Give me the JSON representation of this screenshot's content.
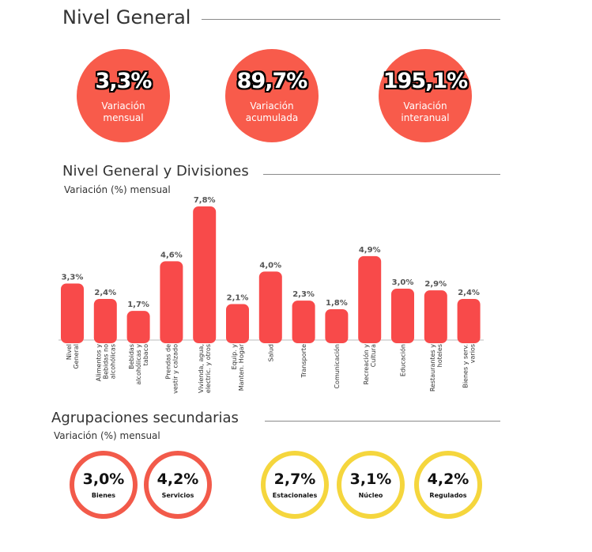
{
  "header": {
    "title": "Nivel General"
  },
  "kpis": [
    {
      "value": "3,3%",
      "label": "Variación\nmensual"
    },
    {
      "value": "89,7%",
      "label": "Variación\nacumulada"
    },
    {
      "value": "195,1%",
      "label": "Variación\ninteranual"
    }
  ],
  "divisions": {
    "title": "Nivel General y Divisiones",
    "subtitle": "Variación (%) mensual"
  },
  "chart_data": {
    "type": "bar",
    "categories": [
      "Nivel\nGeneral",
      "Alimentos y\nBebidas no\nalcohólicas",
      "Bebidas\nalcohólicas y\ntabaco",
      "Prendas de\nvestir y calzado",
      "Vivienda, agua,\nelectric. y otros",
      "Equip. y\nManten. Hogar",
      "Salud",
      "Transporte",
      "Comunicación",
      "Recreación y\nCultura",
      "Educación",
      "Restaurantes y\nhoteles",
      "Bienes y serv.\nvarios"
    ],
    "values": [
      3.3,
      2.4,
      1.7,
      4.6,
      7.8,
      2.1,
      4.0,
      2.3,
      1.8,
      4.9,
      3.0,
      2.9,
      2.4
    ],
    "value_labels": [
      "3,3%",
      "2,4%",
      "1,7%",
      "4,6%",
      "7,8%",
      "2,1%",
      "4,0%",
      "2,3%",
      "1,8%",
      "4,9%",
      "3,0%",
      "2,9%",
      "2,4%"
    ],
    "ylim": [
      0,
      7.8
    ],
    "grid": false,
    "bar_color": "#f84a4a"
  },
  "secondary": {
    "title": "Agrupaciones secundarias",
    "subtitle": "Variación (%) mensual",
    "items": [
      {
        "value": "3,0%",
        "label": "Bienes",
        "color": "red"
      },
      {
        "value": "4,2%",
        "label": "Servicios",
        "color": "red"
      },
      {
        "value": "2,7%",
        "label": "Estacionales",
        "color": "yellow"
      },
      {
        "value": "3,1%",
        "label": "Núcleo",
        "color": "yellow"
      },
      {
        "value": "4,2%",
        "label": "Regulados",
        "color": "yellow"
      }
    ]
  },
  "colors": {
    "coral": "#f85b4b",
    "ring_red": "#f25a4a",
    "ring_yellow": "#f5d63d"
  }
}
